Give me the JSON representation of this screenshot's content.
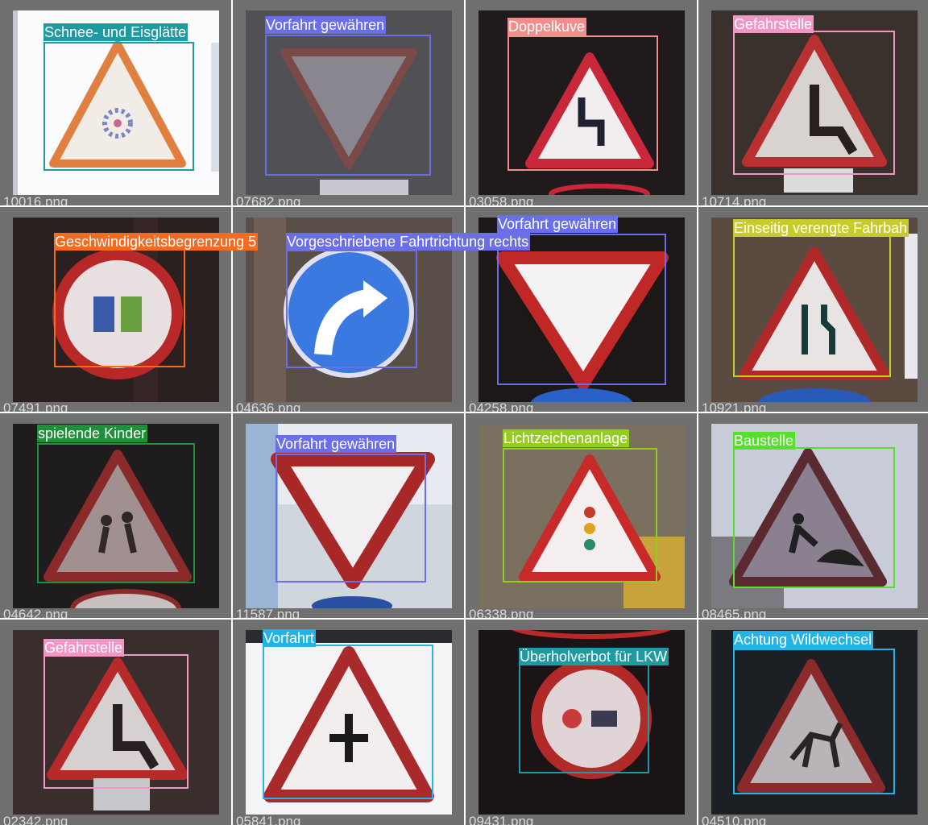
{
  "tiles": [
    {
      "file": "10016.png",
      "label": "Schnee- und Eisglätte",
      "color": "#1f9aa0",
      "icon": "snowflake-sign"
    },
    {
      "file": "07682.png",
      "label": "Vorfahrt gewähren",
      "color": "#6a6ee8",
      "icon": "yield-sign"
    },
    {
      "file": "03058.png",
      "label": "Doppelkuve",
      "color": "#f08e8a",
      "icon": "double-curve-sign"
    },
    {
      "file": "10714.png",
      "label": "Gefahrstelle",
      "color": "#f197c6",
      "icon": "danger-sign"
    },
    {
      "file": "07491.png",
      "label": "Geschwindigkeitsbegrenzung 5",
      "color": "#f46a1f",
      "icon": "speed-limit-sign"
    },
    {
      "file": "04636.png",
      "label": "Vorgeschriebene Fahrtrichtung rechts",
      "color": "#6a6ee8",
      "icon": "turn-right-sign"
    },
    {
      "file": "04258.png",
      "label": "Vorfahrt gewähren",
      "color": "#6a6ee8",
      "icon": "yield-sign"
    },
    {
      "file": "10921.png",
      "label": "Einseitig verengte Fahrbah",
      "color": "#c8cc28",
      "icon": "road-narrows-sign"
    },
    {
      "file": "04642.png",
      "label": "spielende Kinder",
      "color": "#1f8f3a",
      "icon": "children-sign"
    },
    {
      "file": "11587.png",
      "label": "Vorfahrt gewähren",
      "color": "#6a6ee8",
      "icon": "yield-sign"
    },
    {
      "file": "06338.png",
      "label": "Lichtzeichenanlage",
      "color": "#94cc22",
      "icon": "traffic-light-sign"
    },
    {
      "file": "08465.png",
      "label": "Baustelle",
      "color": "#55e02a",
      "icon": "roadworks-sign"
    },
    {
      "file": "02342.png",
      "label": "Gefahrstelle",
      "color": "#f197c6",
      "icon": "danger-sign"
    },
    {
      "file": "05841.png",
      "label": "Vorfahrt",
      "color": "#22b4e6",
      "icon": "priority-sign"
    },
    {
      "file": "09431.png",
      "label": "Überholverbot für LKW",
      "color": "#1f9aa0",
      "icon": "no-overtaking-truck-sign"
    },
    {
      "file": "04510.png",
      "label": "Achtung Wildwechsel",
      "color": "#22b4e6",
      "icon": "deer-crossing-sign"
    }
  ]
}
